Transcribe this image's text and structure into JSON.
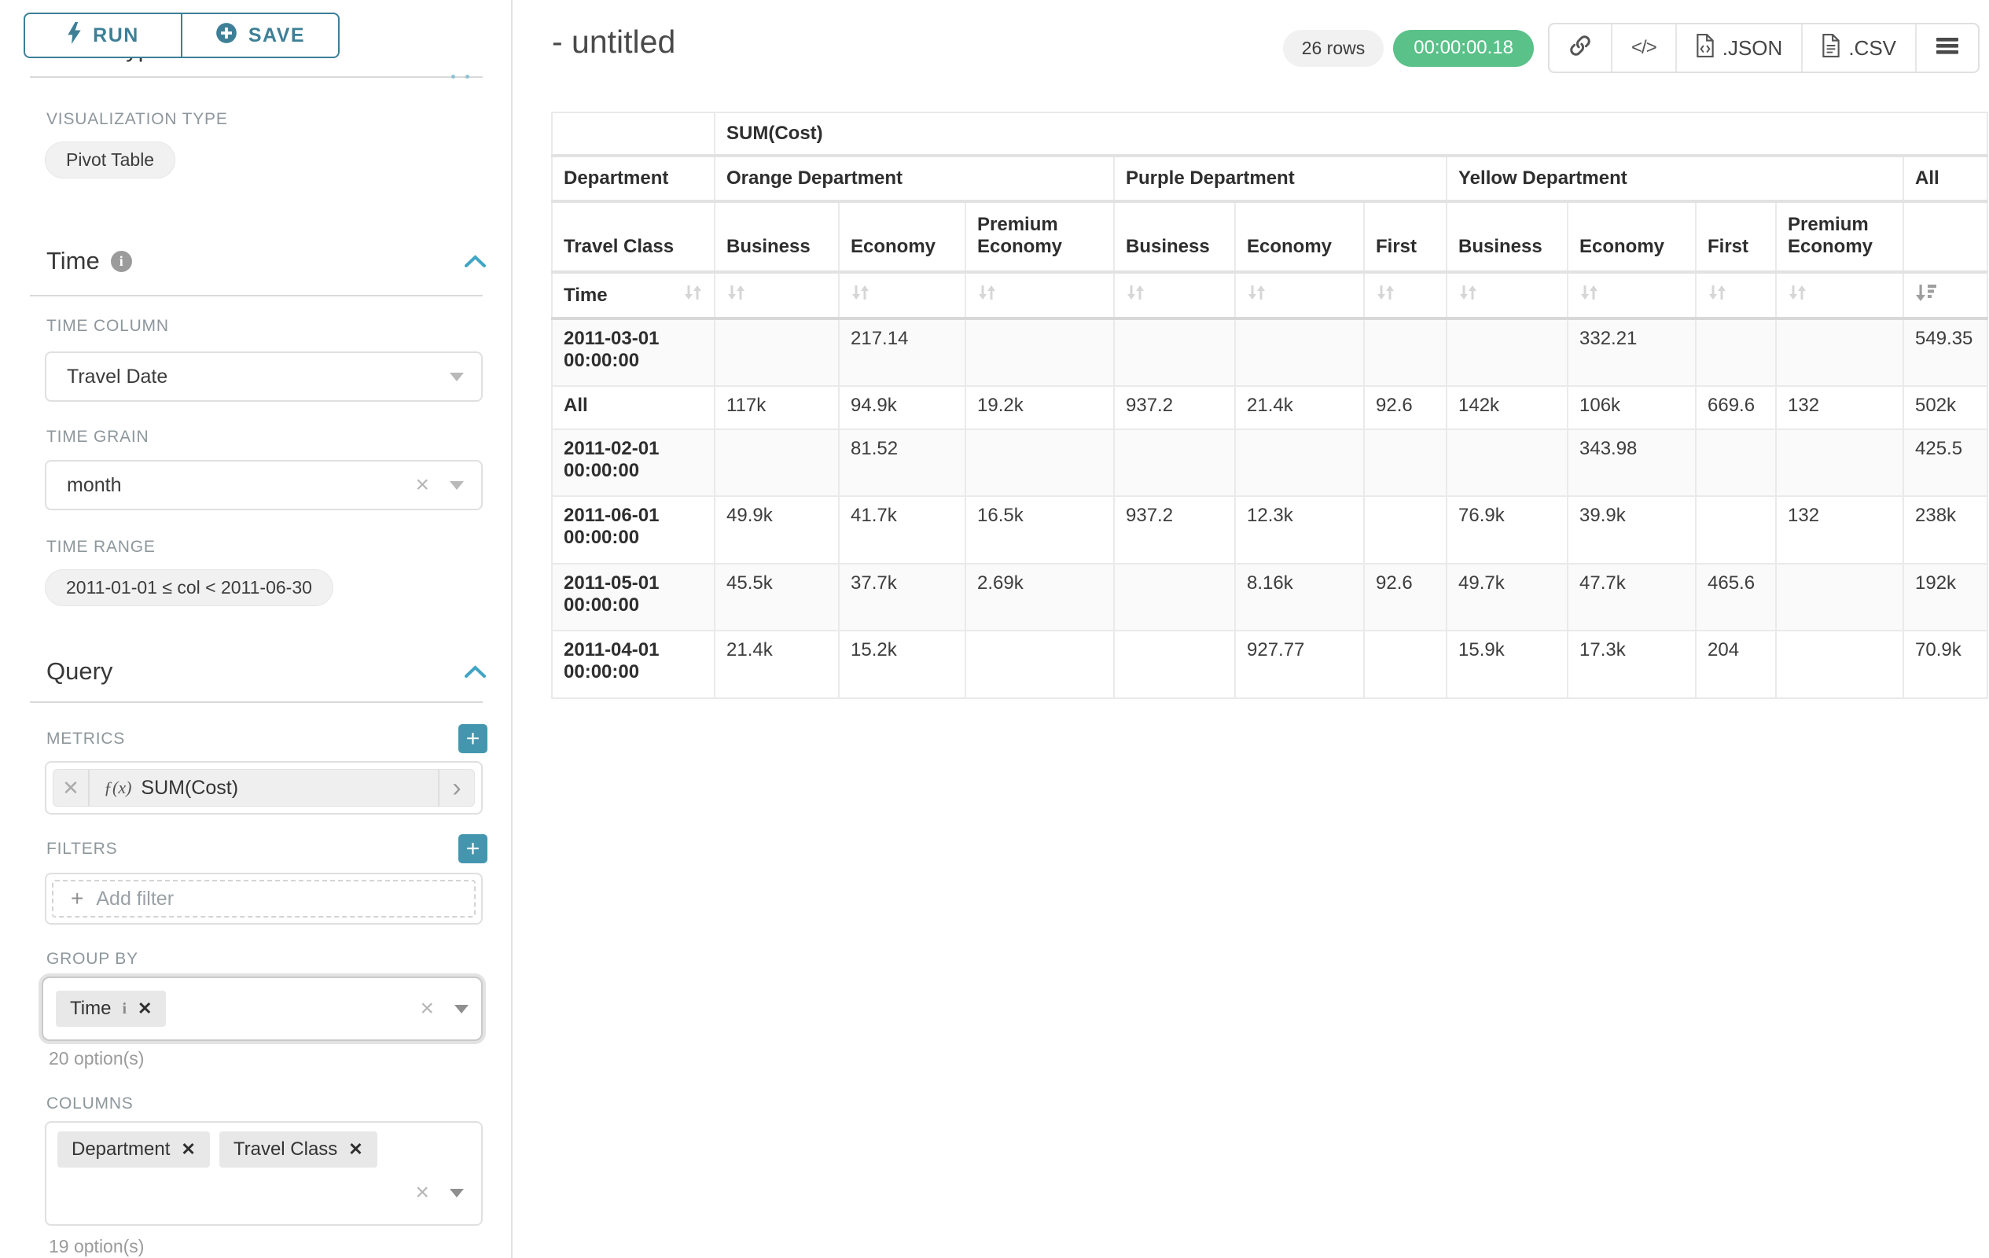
{
  "sidebar": {
    "run_label": "RUN",
    "save_label": "SAVE",
    "chart_type_heading": "Chart Type",
    "viz": {
      "label": "VISUALIZATION TYPE",
      "value": "Pivot Table"
    },
    "time": {
      "title": "Time",
      "column_label": "TIME COLUMN",
      "column_value": "Travel Date",
      "grain_label": "TIME GRAIN",
      "grain_value": "month",
      "range_label": "TIME RANGE",
      "range_value": "2011-01-01 ≤ col < 2011-06-30"
    },
    "query": {
      "title": "Query",
      "metrics_label": "METRICS",
      "metric_fn": "ƒ(x)",
      "metric_name": "SUM(Cost)",
      "filters_label": "FILTERS",
      "add_filter": "Add filter",
      "groupby_label": "GROUP BY",
      "groupby_tag": "Time",
      "groupby_options": "20 option(s)",
      "columns_label": "COLUMNS",
      "columns_tags": [
        "Department",
        "Travel Class"
      ],
      "columns_options": "19 option(s)"
    }
  },
  "main": {
    "title": "- untitled",
    "rows_badge": "26 rows",
    "timer": "00:00:00.18",
    "json_label": ".JSON",
    "csv_label": ".CSV"
  },
  "colors": {
    "accent_teal": "#3d7f97",
    "plus_button_teal": "#4496af",
    "timer_green": "#5ac189",
    "label_grey": "#8d979c"
  },
  "chart_data": {
    "type": "table",
    "subtype": "pivot",
    "metric_header": "SUM(Cost)",
    "row_dim_labels": [
      "Department",
      "Travel Class",
      "Time"
    ],
    "column_groups": [
      {
        "label": "Orange Department",
        "classes": [
          "Business",
          "Economy",
          "Premium Economy"
        ]
      },
      {
        "label": "Purple Department",
        "classes": [
          "Business",
          "Economy",
          "First"
        ]
      },
      {
        "label": "Yellow Department",
        "classes": [
          "Business",
          "Economy",
          "First",
          "Premium Economy"
        ]
      },
      {
        "label": "All",
        "classes": [
          ""
        ]
      }
    ],
    "sort": {
      "column": "All",
      "direction": "desc"
    },
    "rows": [
      {
        "label": "2011-03-01 00:00:00",
        "values": [
          "",
          "217.14",
          "",
          "",
          "",
          "",
          "",
          "332.21",
          "",
          "",
          "549.35"
        ]
      },
      {
        "label": "All",
        "values": [
          "117k",
          "94.9k",
          "19.2k",
          "937.2",
          "21.4k",
          "92.6",
          "142k",
          "106k",
          "669.6",
          "132",
          "502k"
        ]
      },
      {
        "label": "2011-02-01 00:00:00",
        "values": [
          "",
          "81.52",
          "",
          "",
          "",
          "",
          "",
          "343.98",
          "",
          "",
          "425.5"
        ]
      },
      {
        "label": "2011-06-01 00:00:00",
        "values": [
          "49.9k",
          "41.7k",
          "16.5k",
          "937.2",
          "12.3k",
          "",
          "76.9k",
          "39.9k",
          "",
          "132",
          "238k"
        ]
      },
      {
        "label": "2011-05-01 00:00:00",
        "values": [
          "45.5k",
          "37.7k",
          "2.69k",
          "",
          "8.16k",
          "92.6",
          "49.7k",
          "47.7k",
          "465.6",
          "",
          "192k"
        ]
      },
      {
        "label": "2011-04-01 00:00:00",
        "values": [
          "21.4k",
          "15.2k",
          "",
          "",
          "927.77",
          "",
          "15.9k",
          "17.3k",
          "204",
          "",
          "70.9k"
        ]
      }
    ]
  }
}
